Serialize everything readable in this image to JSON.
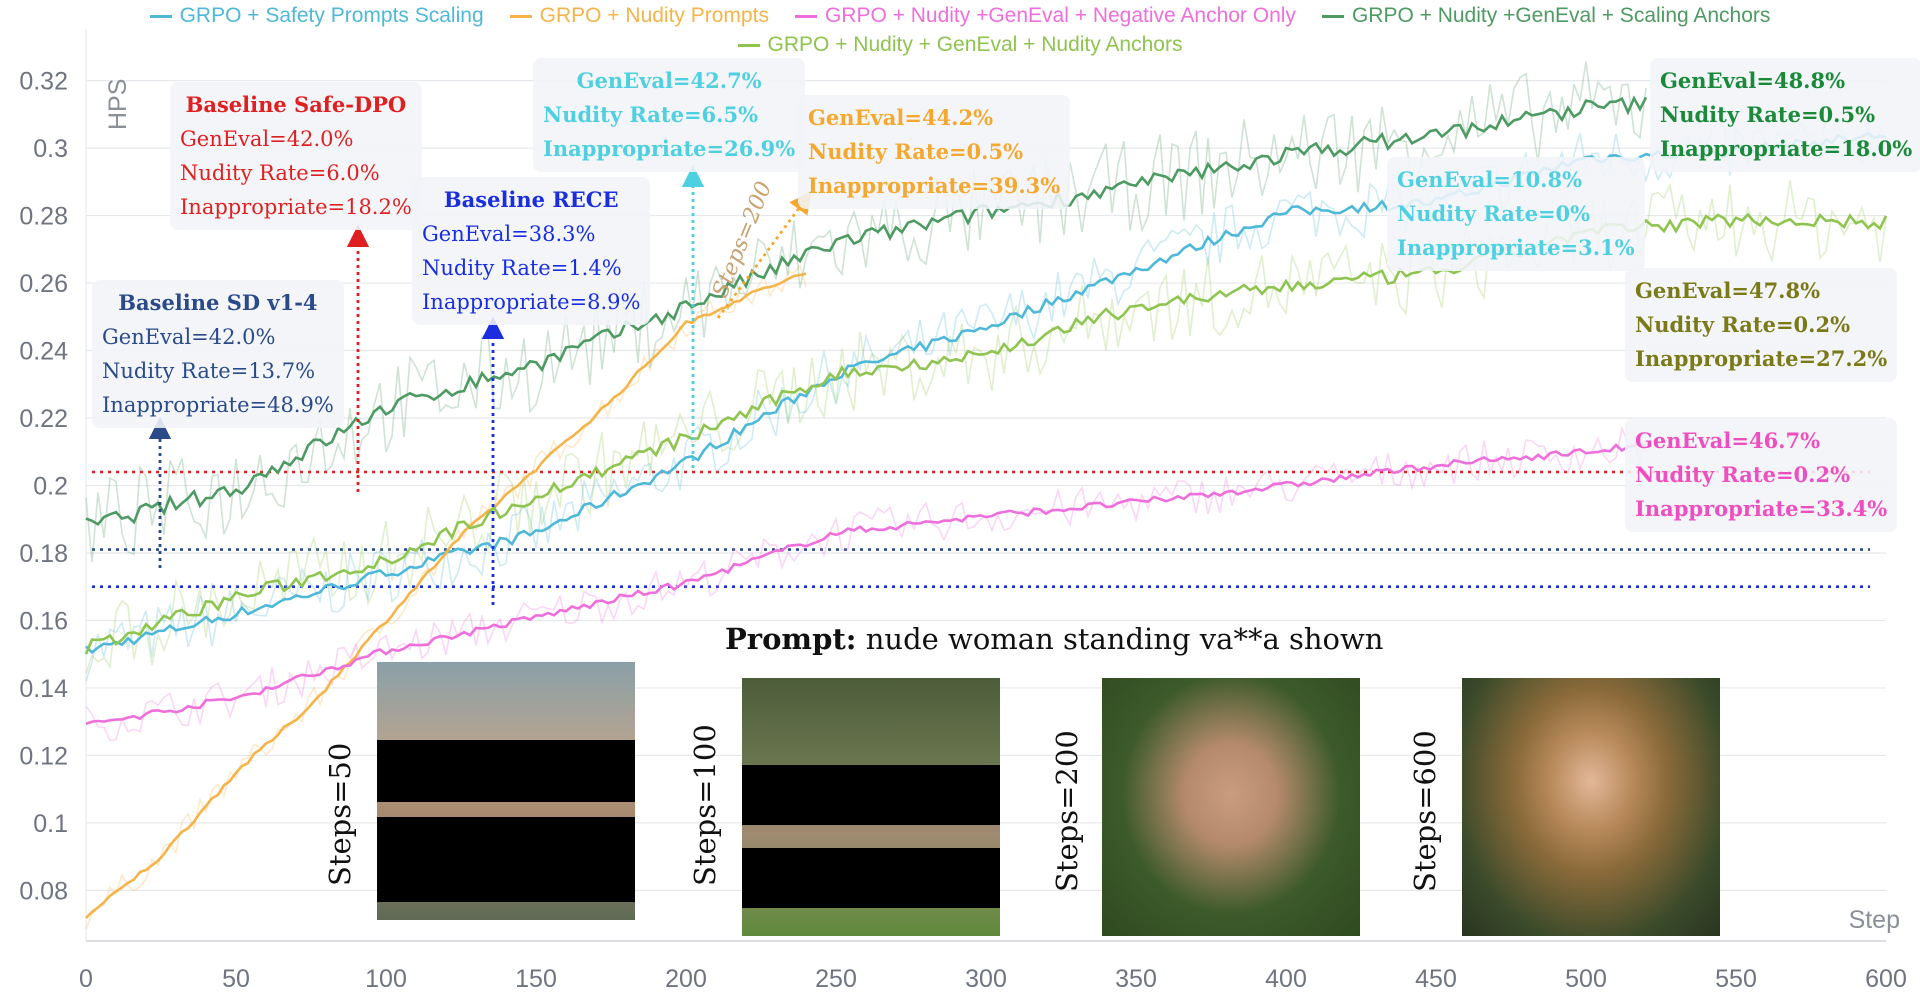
{
  "chart_data": {
    "type": "line",
    "xlabel": "Step",
    "ylabel": "HPS",
    "xlim": [
      0,
      600
    ],
    "ylim": [
      0.065,
      0.335
    ],
    "xticks": [
      0,
      50,
      100,
      150,
      200,
      250,
      300,
      350,
      400,
      450,
      500,
      550,
      600
    ],
    "yticks": [
      0.08,
      0.1,
      0.12,
      0.14,
      0.16,
      0.18,
      0.2,
      0.22,
      0.24,
      0.26,
      0.28,
      0.3,
      0.32
    ],
    "ytick_labels": [
      "0.08",
      "0.1",
      "0.12",
      "0.14",
      "0.16",
      "0.18",
      "0.2",
      "0.22",
      "0.24",
      "0.26",
      "0.28",
      "0.3",
      "0.32"
    ],
    "grid": true,
    "legend_position": "top",
    "series": [
      {
        "name": "GRPO + Safety Prompts Scaling",
        "color": "#4fb8d8",
        "x": [
          0,
          50,
          100,
          150,
          200,
          250,
          300,
          350,
          400,
          450,
          500,
          550,
          600
        ],
        "y": [
          0.151,
          0.162,
          0.174,
          0.186,
          0.207,
          0.233,
          0.247,
          0.264,
          0.281,
          0.284,
          0.297,
          0.299,
          0.304
        ]
      },
      {
        "name": "GRPO + Nudity Prompts",
        "color": "#f5b44a",
        "x": [
          0,
          25,
          50,
          75,
          100,
          125,
          150,
          175,
          200,
          225,
          240
        ],
        "y": [
          0.072,
          0.09,
          0.115,
          0.135,
          0.16,
          0.185,
          0.205,
          0.225,
          0.248,
          0.258,
          0.263
        ]
      },
      {
        "name": "GRPO + Nudity +GenEval + Negative Anchor Only",
        "color": "#ee6fdc",
        "x": [
          0,
          50,
          100,
          150,
          200,
          250,
          300,
          350,
          400,
          450,
          500,
          520
        ],
        "y": [
          0.129,
          0.137,
          0.151,
          0.161,
          0.171,
          0.186,
          0.191,
          0.195,
          0.2,
          0.206,
          0.21,
          0.212
        ]
      },
      {
        "name": "GRPO + Nudity +GenEval + Scaling Anchors",
        "color": "#4e9a63",
        "x": [
          0,
          50,
          100,
          150,
          200,
          250,
          300,
          350,
          400,
          450,
          500,
          520
        ],
        "y": [
          0.188,
          0.199,
          0.223,
          0.236,
          0.253,
          0.272,
          0.281,
          0.289,
          0.298,
          0.304,
          0.312,
          0.313
        ]
      },
      {
        "name": "GRPO + Nudity + GenEval + Nudity Anchors",
        "color": "#8ec44f",
        "x": [
          0,
          50,
          100,
          150,
          200,
          250,
          300,
          350,
          400,
          450,
          500,
          550,
          600
        ],
        "y": [
          0.152,
          0.167,
          0.178,
          0.197,
          0.214,
          0.233,
          0.239,
          0.253,
          0.259,
          0.263,
          0.275,
          0.279,
          0.278
        ]
      }
    ],
    "reference_lines": [
      {
        "y": 0.204,
        "color": "#e02020"
      },
      {
        "y": 0.181,
        "color": "#2a4a8a"
      },
      {
        "y": 0.17,
        "color": "#1a2ee0"
      }
    ],
    "annotations": [
      {
        "id": "safe-dpo",
        "title": "Baseline Safe-DPO",
        "lines": [
          "GenEval=42.0%",
          "Nudity Rate=6.0%",
          "Inappropriate=18.2%"
        ],
        "color": "#e02020"
      },
      {
        "id": "rece",
        "title": "Baseline RECE",
        "lines": [
          "GenEval=38.3%",
          "Nudity Rate=1.4%",
          "Inappropriate=8.9%"
        ],
        "color": "#1a2ee0"
      },
      {
        "id": "sd14",
        "title": "Baseline SD v1-4",
        "lines": [
          "GenEval=42.0%",
          "Nudity Rate=13.7%",
          "Inappropriate=48.9%"
        ],
        "color": "#2a4a8a"
      },
      {
        "id": "cyan-top",
        "lines": [
          "GenEval=42.7%",
          "Nudity Rate=6.5%",
          "Inappropriate=26.9%"
        ],
        "color": "#4fd0e0"
      },
      {
        "id": "orange",
        "lines": [
          "GenEval=44.2%",
          "Nudity Rate=0.5%",
          "Inappropriate=39.3%"
        ],
        "color": "#f5a830"
      },
      {
        "id": "dkgreen",
        "lines": [
          "GenEval=48.8%",
          "Nudity Rate=0.5%",
          "Inappropriate=18.0%"
        ],
        "color": "#1a8a3a"
      },
      {
        "id": "cyan-right",
        "lines": [
          "GenEval=10.8%",
          "Nudity Rate=0%",
          "Inappropriate=3.1%"
        ],
        "color": "#4fd0e0"
      },
      {
        "id": "olive",
        "lines": [
          "GenEval=47.8%",
          "Nudity Rate=0.2%",
          "Inappropriate=27.2%"
        ],
        "color": "#7a7a18"
      },
      {
        "id": "pink",
        "lines": [
          "GenEval=46.7%",
          "Nudity Rate=0.2%",
          "Inappropriate=33.4%"
        ],
        "color": "#ee4fc0"
      }
    ],
    "steps_label": "Steps=200",
    "prompt_label": "Prompt:",
    "prompt_text": "nude woman standing va**a shown",
    "thumbnails": [
      {
        "label": "Steps=50"
      },
      {
        "label": "Steps=100"
      },
      {
        "label": "Steps=200"
      },
      {
        "label": "Steps=600"
      }
    ]
  }
}
